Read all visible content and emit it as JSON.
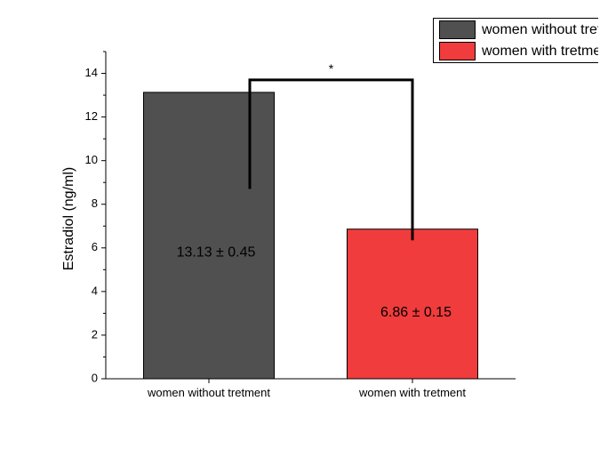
{
  "chart_data": {
    "type": "bar",
    "title": "",
    "xlabel": "",
    "ylabel": "Estradiol (ng/ml)",
    "ylim": [
      0,
      15
    ],
    "yticks": [
      0,
      2,
      4,
      6,
      8,
      10,
      12,
      14
    ],
    "categories": [
      "women without tretment",
      "women with tretment"
    ],
    "values": [
      13.13,
      6.86
    ],
    "data_labels": [
      "13.13 ± 0.45",
      "6.86 ± 0.15"
    ],
    "colors": [
      "#505050",
      "#f03c3c"
    ],
    "legend": {
      "placement": "top-right",
      "entries": [
        "women without tretment",
        "women with tretment"
      ]
    },
    "annotation": {
      "text": "*",
      "type": "significance-bracket",
      "left_end": 8.7,
      "right_end": 6.35,
      "top": 13.7
    },
    "grid": false
  }
}
